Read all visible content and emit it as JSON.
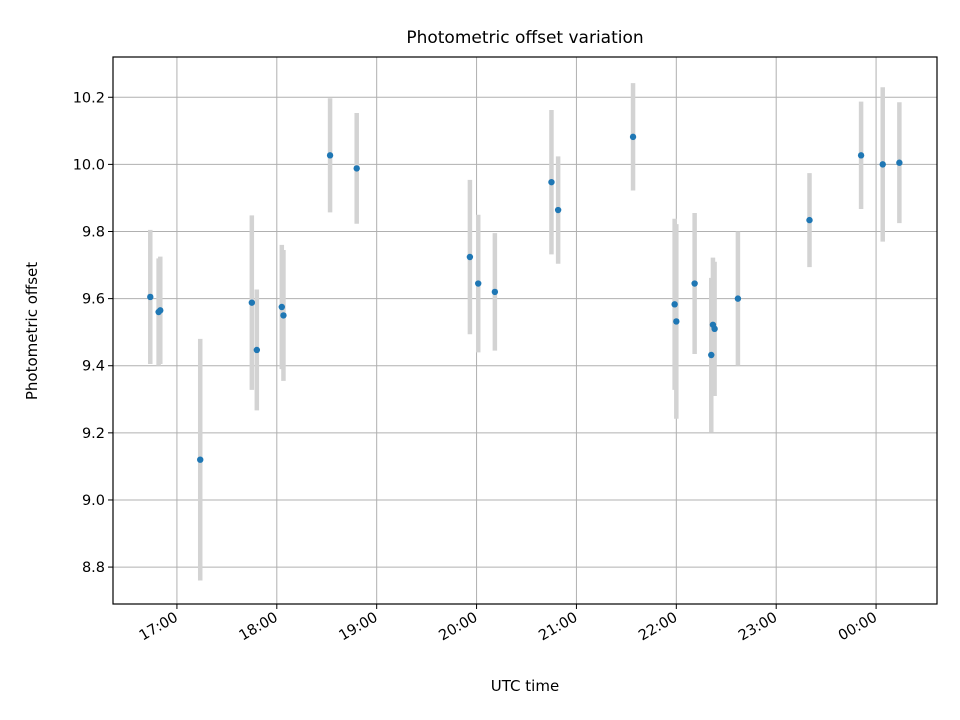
{
  "chart_data": {
    "type": "scatter",
    "title": "Photometric offset variation",
    "xlabel": "UTC time",
    "ylabel": "Photometric offset",
    "x_tick_labels": [
      "17:00",
      "18:00",
      "19:00",
      "20:00",
      "21:00",
      "22:00",
      "23:00",
      "00:00"
    ],
    "y_tick_labels": [
      "8.8",
      "9.0",
      "9.2",
      "9.4",
      "9.6",
      "9.8",
      "10.0",
      "10.2"
    ],
    "y_ticks": [
      8.8,
      9.0,
      9.2,
      9.4,
      9.6,
      9.8,
      10.0,
      10.2
    ],
    "x_ticks_hours": [
      17,
      18,
      19,
      20,
      21,
      22,
      23,
      24
    ],
    "xlim_hours": [
      16.36,
      24.61
    ],
    "ylim": [
      8.69,
      10.32
    ],
    "grid": true,
    "marker_color": "#1f77b4",
    "errorbar_color": "#d3d3d3",
    "points": [
      {
        "time": "16:44",
        "y": 9.605,
        "err": 0.2
      },
      {
        "time": "16:49",
        "y": 9.56,
        "err": 0.16
      },
      {
        "time": "16:50",
        "y": 9.565,
        "err": 0.16
      },
      {
        "time": "17:14",
        "y": 9.12,
        "err": 0.36
      },
      {
        "time": "17:45",
        "y": 9.588,
        "err": 0.26
      },
      {
        "time": "17:48",
        "y": 9.447,
        "err": 0.18
      },
      {
        "time": "18:03",
        "y": 9.575,
        "err": 0.185
      },
      {
        "time": "18:04",
        "y": 9.55,
        "err": 0.195
      },
      {
        "time": "18:32",
        "y": 10.027,
        "err": 0.17
      },
      {
        "time": "18:48",
        "y": 9.988,
        "err": 0.165
      },
      {
        "time": "19:56",
        "y": 9.724,
        "err": 0.23
      },
      {
        "time": "20:01",
        "y": 9.645,
        "err": 0.205
      },
      {
        "time": "20:11",
        "y": 9.62,
        "err": 0.175
      },
      {
        "time": "20:45",
        "y": 9.947,
        "err": 0.215
      },
      {
        "time": "20:49",
        "y": 9.864,
        "err": 0.16
      },
      {
        "time": "21:34",
        "y": 10.082,
        "err": 0.16
      },
      {
        "time": "21:59",
        "y": 9.583,
        "err": 0.255
      },
      {
        "time": "22:00",
        "y": 9.532,
        "err": 0.29
      },
      {
        "time": "22:11",
        "y": 9.645,
        "err": 0.21
      },
      {
        "time": "22:21",
        "y": 9.432,
        "err": 0.23
      },
      {
        "time": "22:22",
        "y": 9.522,
        "err": 0.2
      },
      {
        "time": "22:23",
        "y": 9.51,
        "err": 0.2
      },
      {
        "time": "22:37",
        "y": 9.6,
        "err": 0.2
      },
      {
        "time": "23:20",
        "y": 9.834,
        "err": 0.14
      },
      {
        "time": "23:51",
        "y": 10.027,
        "err": 0.16
      },
      {
        "time": "00:04",
        "y": 10.0,
        "err": 0.23
      },
      {
        "time": "00:14",
        "y": 10.005,
        "err": 0.18
      }
    ]
  }
}
